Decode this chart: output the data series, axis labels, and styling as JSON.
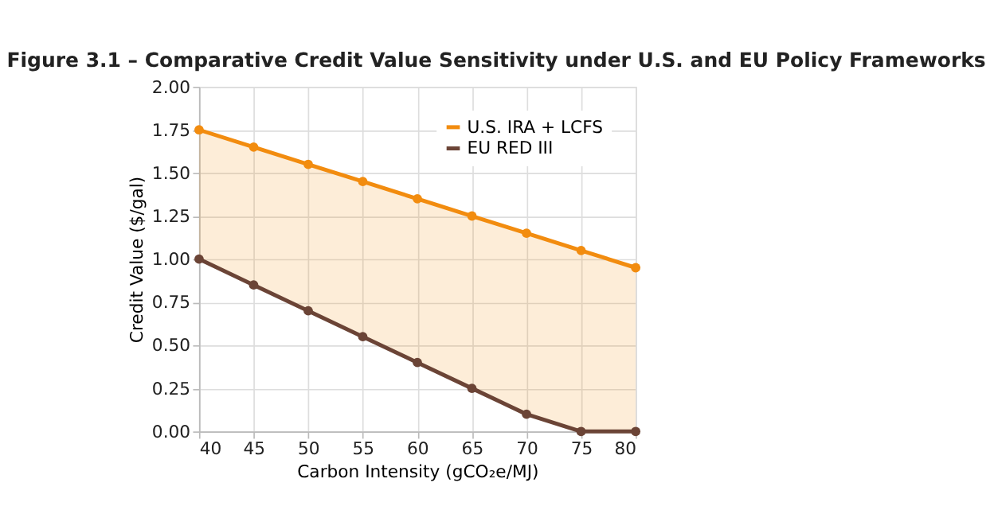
{
  "chart_data": {
    "type": "line",
    "title": "Figure 3.1 – Comparative Credit Value Sensitivity under U.S. and EU Policy Frameworks",
    "xlabel": "Carbon Intensity (gCO₂e/MJ)",
    "ylabel": "Credit Value ($/gal)",
    "x": [
      40,
      45,
      50,
      55,
      60,
      65,
      70,
      75,
      80
    ],
    "series": [
      {
        "name": "U.S. IRA + LCFS",
        "color": "#f28c0f",
        "values": [
          1.75,
          1.65,
          1.55,
          1.45,
          1.35,
          1.25,
          1.15,
          1.05,
          0.95
        ],
        "lower": [
          1.0,
          0.85,
          0.7,
          0.55,
          0.4,
          0.25,
          0.1,
          0.0,
          0.0
        ],
        "upper": [
          1.75,
          1.65,
          1.55,
          1.45,
          1.35,
          1.25,
          1.15,
          1.05,
          0.95
        ]
      },
      {
        "name": "EU RED III",
        "color": "#6b4436",
        "values": [
          1.0,
          0.85,
          0.7,
          0.55,
          0.4,
          0.25,
          0.1,
          0.0,
          0.0
        ]
      }
    ],
    "xlim": [
      40,
      80
    ],
    "xticks": [
      40,
      45,
      50,
      55,
      60,
      65,
      70,
      75,
      80
    ],
    "ylim": [
      0,
      2
    ],
    "yticks": [
      {
        "value": 0,
        "label": "0.00"
      },
      {
        "value": 0.25,
        "label": "0.25"
      },
      {
        "value": 0.5,
        "label": "0.50"
      },
      {
        "value": 0.75,
        "label": "0.75"
      },
      {
        "value": 1,
        "label": "1.00"
      },
      {
        "value": 1.25,
        "label": "1.25"
      },
      {
        "value": 1.5,
        "label": "1.50"
      },
      {
        "value": 1.75,
        "label": "1.75"
      },
      {
        "value": 2,
        "label": "2.00"
      }
    ],
    "grid": true,
    "legend": "top right",
    "marker": "circle",
    "line_style": "solid"
  }
}
